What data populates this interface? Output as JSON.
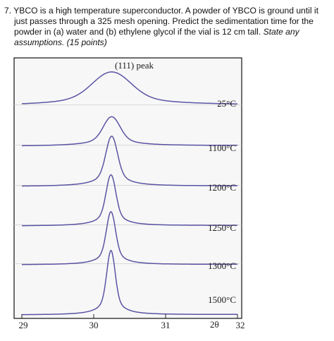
{
  "question": {
    "line1": "7.  YBCO is a high temperature superconductor.  A powder of YBCO is ground until it",
    "line2": "just passes through a 325 mesh opening.  Predict the sedimentation time for the",
    "line3": "powder in (a) water and (b) ethylene glycol if the vial is 12 cm tall.  ",
    "line3_italic": "State any",
    "line4_italic": "assumptions.  (15 points)"
  },
  "chart_data": {
    "type": "line",
    "annotations": [
      "(111) peak"
    ],
    "xlabel": "2θ",
    "x_ticks": [
      "29",
      "30",
      "31",
      "32"
    ],
    "xlim": [
      29,
      32
    ],
    "series": [
      {
        "name": "25°C",
        "center": 30.25,
        "fwhm": 0.6,
        "relative_height": 0.55,
        "baseline_tilt": 0.06
      },
      {
        "name": "1100°C",
        "center": 30.25,
        "fwhm": 0.26,
        "relative_height": 0.7,
        "baseline_tilt": 0.05
      },
      {
        "name": "1200°C",
        "center": 30.25,
        "fwhm": 0.18,
        "relative_height": 0.92,
        "baseline_tilt": 0.04
      },
      {
        "name": "1250°C",
        "center": 30.24,
        "fwhm": 0.15,
        "relative_height": 0.95,
        "baseline_tilt": 0.04
      },
      {
        "name": "1300°C",
        "center": 30.24,
        "fwhm": 0.14,
        "relative_height": 1.0,
        "baseline_tilt": 0.03
      },
      {
        "name": "1500°C",
        "center": 30.24,
        "fwhm": 0.13,
        "relative_height": 1.0,
        "baseline_tilt": 0.03
      }
    ],
    "grid": false,
    "colors": {
      "line": "#5a54a3",
      "frame": "#222222",
      "background": "#f7f7f7"
    }
  }
}
